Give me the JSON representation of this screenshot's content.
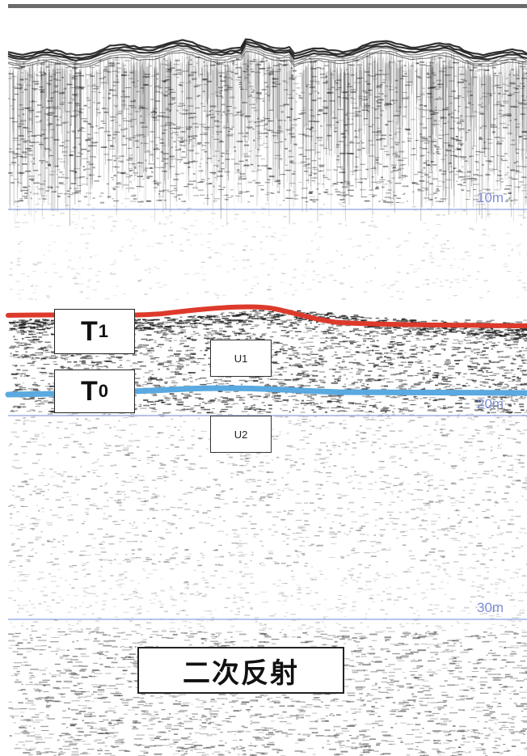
{
  "depth_labels": [
    "10m",
    "20m",
    "30m"
  ],
  "horizons": [
    {
      "letter": "T",
      "sub": "1",
      "color": "#dd3a2b"
    },
    {
      "letter": "T",
      "sub": "0",
      "color": "#5aa9e0"
    }
  ],
  "units": [
    "U1",
    "U2"
  ],
  "caption": "二次反射",
  "colors": {
    "gridline": "#8c9de0",
    "background": "#ffffff",
    "noise": "#1a1a1a"
  }
}
